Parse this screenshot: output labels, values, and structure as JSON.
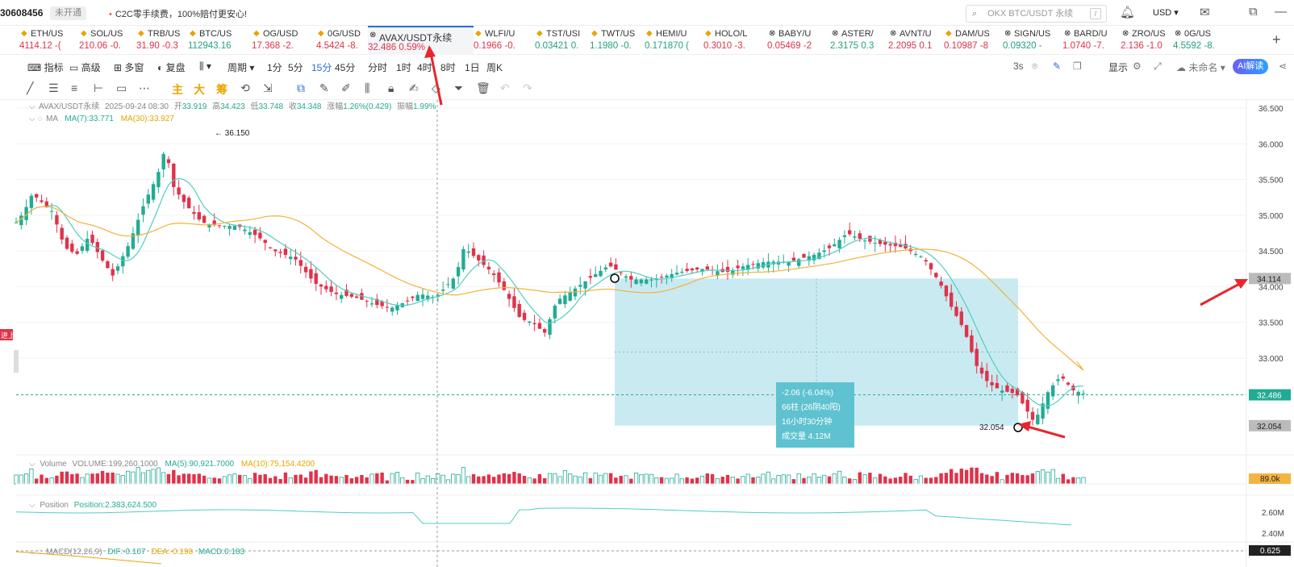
{
  "topbar": {
    "account": "30608456",
    "status_badge": "未开通",
    "promo": "C2C零手续费，100%赔付更安心!",
    "search_placeholder": "OKX BTC/USDT 永续",
    "search_hotkey": "/",
    "currency": "USD"
  },
  "tabs": [
    {
      "name": "ETH/US",
      "price": "4114.12 -(",
      "dir": "dn",
      "icon": "star"
    },
    {
      "name": "SOL/US",
      "price": "210.06 -0.",
      "dir": "dn",
      "icon": "star"
    },
    {
      "name": "TRB/US",
      "price": "31.90 -0.3",
      "dir": "dn",
      "icon": "star"
    },
    {
      "name": "BTC/US",
      "price": "112943.16",
      "dir": "up",
      "icon": "star"
    },
    {
      "name": "OG/USD",
      "price": "17.368 -2.",
      "dir": "dn",
      "icon": "star"
    },
    {
      "name": "0G/USD",
      "price": "4.5424 -8.",
      "dir": "dn",
      "icon": "star"
    },
    {
      "name": "AVAX/USDT永续",
      "price": "32.486 0.59%",
      "dir": "dn",
      "icon": "x",
      "active": true
    },
    {
      "name": "WLFI/U",
      "price": "0.1966 -0.",
      "dir": "dn",
      "icon": "star"
    },
    {
      "name": "TST/USI",
      "price": "0.03421 0.",
      "dir": "up",
      "icon": "star"
    },
    {
      "name": "TWT/US",
      "price": "1.1980 -0.",
      "dir": "up",
      "icon": "star"
    },
    {
      "name": "HEMI/U",
      "price": "0.171870 (",
      "dir": "up",
      "icon": "star"
    },
    {
      "name": "HOLO/L",
      "price": "0.3010 -3.",
      "dir": "dn",
      "icon": "star"
    },
    {
      "name": "BABY/U",
      "price": "0.05469 -2",
      "dir": "dn",
      "icon": "x"
    },
    {
      "name": "ASTER/",
      "price": "2.3175 0.3",
      "dir": "up",
      "icon": "x"
    },
    {
      "name": "AVNT/U",
      "price": "2.2095 0.1",
      "dir": "dn",
      "icon": "x"
    },
    {
      "name": "DAM/US",
      "price": "0.10987 -8",
      "dir": "dn",
      "icon": "star"
    },
    {
      "name": "SIGN/US",
      "price": "0.09320 -",
      "dir": "up",
      "icon": "x"
    },
    {
      "name": "BARD/U",
      "price": "1.0740 -7.",
      "dir": "dn",
      "icon": "x"
    },
    {
      "name": "ZRO/US",
      "price": "2.136 -1.0",
      "dir": "dn",
      "icon": "x"
    },
    {
      "name": "0G/US",
      "price": "4.5592 -8.",
      "dir": "up",
      "icon": "x"
    }
  ],
  "toolbar": {
    "indicators": "指标",
    "advanced": "高级",
    "multi_window": "多窗",
    "replay": "复盘",
    "period": "周期",
    "intervals": [
      "1分",
      "5分",
      "15分",
      "45分",
      "分时",
      "1时",
      "4时",
      "8时",
      "1日",
      "周K"
    ],
    "selected_interval": "15分",
    "refresh": "3s",
    "display": "显示",
    "layout_name": "未命名",
    "ai_button": "AI解读"
  },
  "drawbar": {
    "main": "主",
    "big": "大",
    "chip": "筹"
  },
  "chart": {
    "info": {
      "symbol": "AVAX/USDT永续",
      "datetime": "2025-09-24 08:30",
      "open_label": "开",
      "open": "33.919",
      "high_label": "高",
      "high": "34.423",
      "low_label": "低",
      "low": "33.748",
      "close_label": "收",
      "close": "34.348",
      "change_label": "涨幅",
      "change": "1.26%(0.429)",
      "amp_label": "振幅",
      "amplitude": "1.99%"
    },
    "ma": {
      "label": "MA",
      "ma7": "MA(7):33.771",
      "ma30": "MA(30):33.927"
    },
    "high_marker": "36.150",
    "low_marker": "32.054",
    "y_ticks": [
      "36.500",
      "36.000",
      "35.500",
      "35.000",
      "34.500",
      "34.000",
      "33.500",
      "33.000"
    ],
    "price_tags": {
      "measure": "34.114",
      "last": "32.486",
      "low": "32.054"
    },
    "measure": {
      "change": "-2.06 (-6.04%)",
      "bars": "66柱 (26阴40阳)",
      "duration": "16小时30分钟",
      "volume": "成交量 4.12M"
    },
    "side_label": "进上",
    "colors": {
      "up": "#22ab94",
      "down": "#e0324a",
      "ma7": "#4fcfc0",
      "ma30": "#f3b23a",
      "measure": "#bfe6ee"
    },
    "volume": {
      "title": "Volume",
      "value": "VOLUME:199,260.1000",
      "ma5": "MA(5):90,921.7000",
      "ma10": "MA(10):75,154.4200",
      "tag": "89.0k"
    },
    "position": {
      "title": "Position",
      "value": "Position:2,383,624.500",
      "ticks": [
        "2.60M",
        "2.40M"
      ]
    },
    "macd": {
      "title": "MACD(12,26,9)",
      "dif": "DIF:-0.107",
      "dea": "DEA:-0.198",
      "macd": "MACD:0.183",
      "tag": "0.625"
    }
  }
}
